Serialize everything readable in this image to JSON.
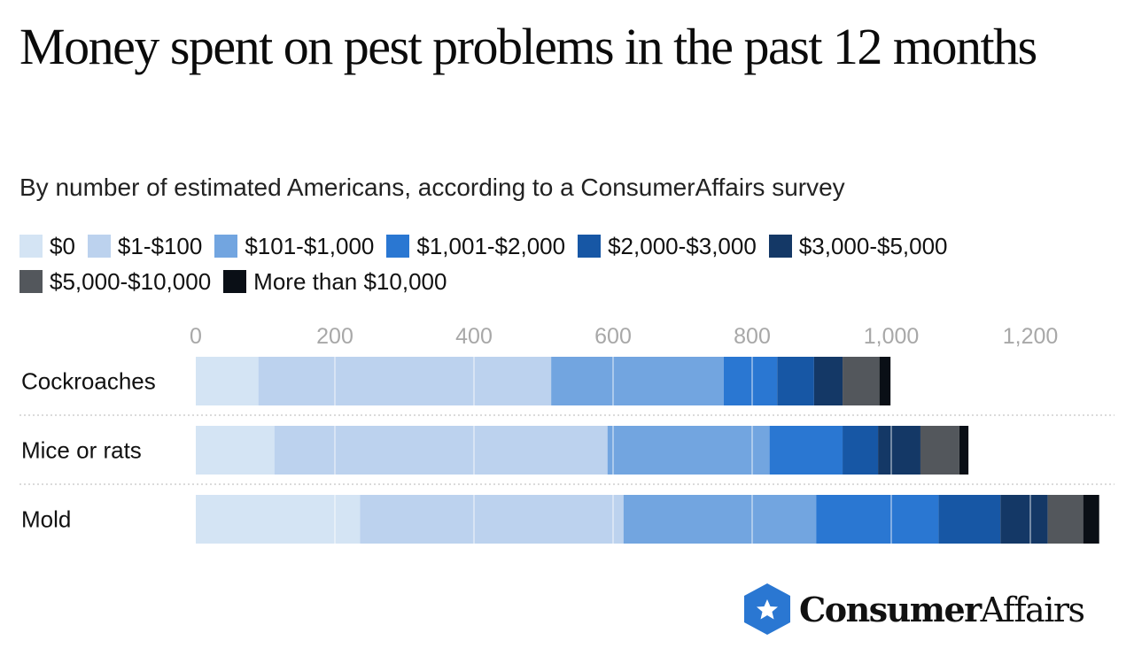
{
  "title": "Money spent on pest problems in the past 12 months",
  "subtitle": "By number of estimated Americans, according to a ConsumerAffairs survey",
  "brand": {
    "name_bold": "Consumer",
    "name_regular": "Affairs",
    "icon": "star-hexagon-icon",
    "color": "#2a77d2"
  },
  "chart_data": {
    "type": "bar",
    "orientation": "horizontal",
    "stacked": true,
    "title": "Money spent on pest problems in the past 12 months",
    "subtitle": "By number of estimated Americans, according to a ConsumerAffairs survey",
    "categories": [
      "Cockroaches",
      "Mice or rats",
      "Mold"
    ],
    "xlim": [
      0,
      1300
    ],
    "ticks": [
      0,
      200,
      400,
      600,
      800,
      1000,
      1200
    ],
    "tick_labels": [
      "0",
      "200",
      "400",
      "600",
      "800",
      "1,000",
      "1,200"
    ],
    "grid": true,
    "legend_position": "top",
    "series": [
      {
        "name": "$0",
        "color": "#d4e4f4",
        "values": [
          90,
          113,
          236
        ]
      },
      {
        "name": "$1-$100",
        "color": "#bcd2ee",
        "values": [
          421,
          479,
          379
        ]
      },
      {
        "name": "$101-$1,000",
        "color": "#72a5e0",
        "values": [
          248,
          233,
          277
        ]
      },
      {
        "name": "$1,001-$2,000",
        "color": "#2a77d2",
        "values": [
          77,
          105,
          176
        ]
      },
      {
        "name": "$2,000-$3,000",
        "color": "#1757a5",
        "values": [
          53,
          51,
          89
        ]
      },
      {
        "name": "$3,000-$5,000",
        "color": "#143866",
        "values": [
          41,
          61,
          68
        ]
      },
      {
        "name": "$5,000-$10,000",
        "color": "#53575c",
        "values": [
          53,
          56,
          51
        ]
      },
      {
        "name": "More than $10,000",
        "color": "#0a0f16",
        "values": [
          16,
          13,
          23
        ]
      }
    ]
  }
}
